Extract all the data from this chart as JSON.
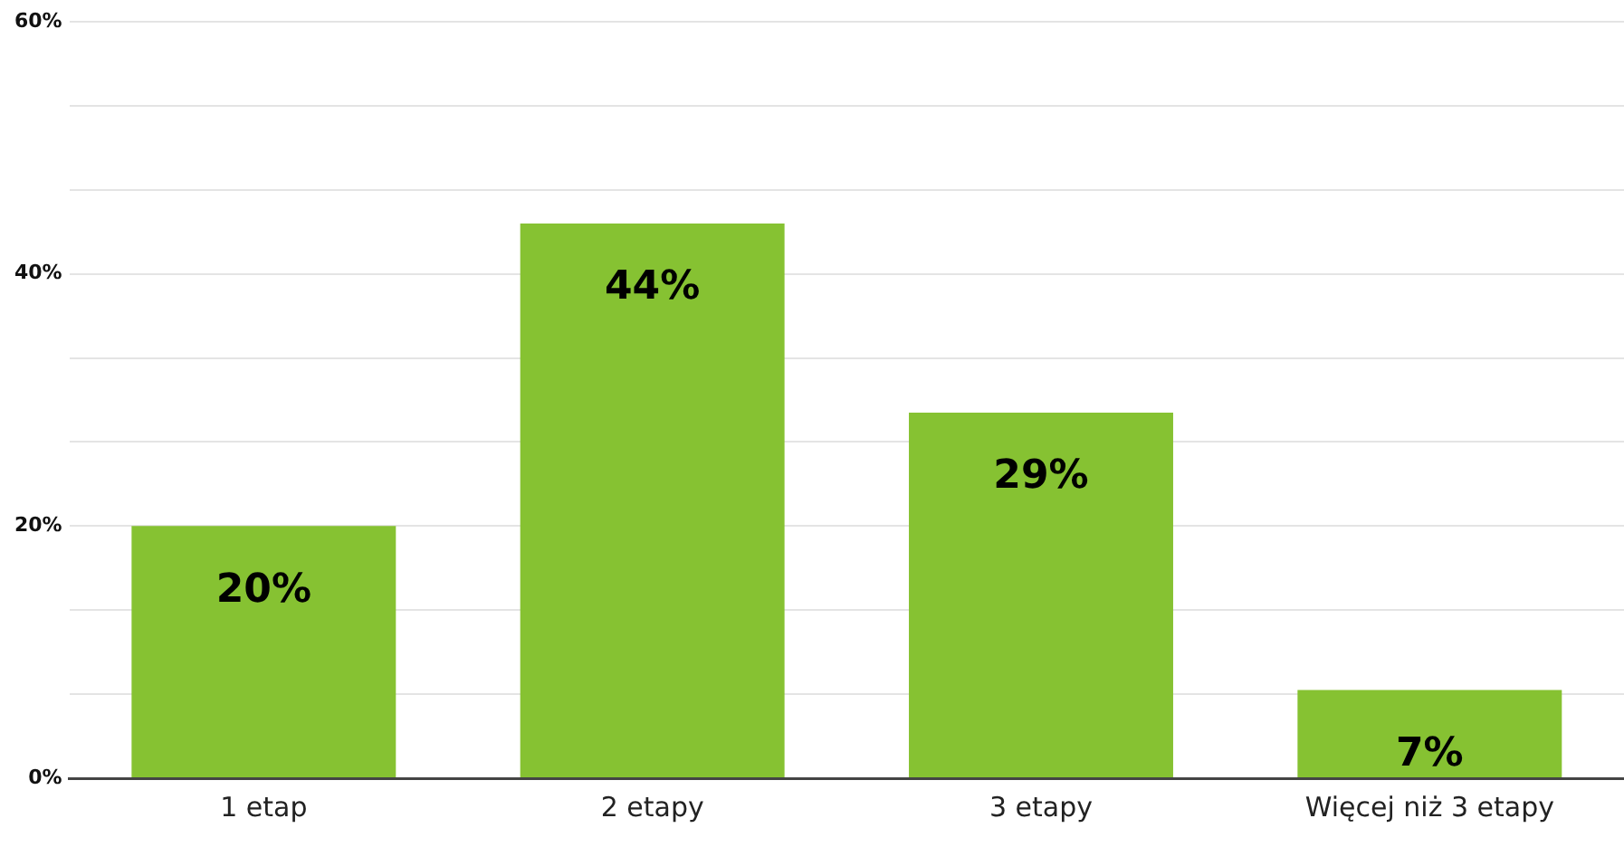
{
  "chart_data": {
    "type": "bar",
    "categories": [
      "1 etap",
      "2 etapy",
      "3 etapy",
      "Więcej niż 3 etapy"
    ],
    "values": [
      20,
      44,
      29,
      7
    ],
    "color": "#86c232",
    "ylim": [
      0,
      60
    ],
    "yticks": [
      {
        "value": 0,
        "label": "0%"
      },
      {
        "value": 6.67,
        "label": null
      },
      {
        "value": 13.33,
        "label": null
      },
      {
        "value": 20,
        "label": "20%"
      },
      {
        "value": 26.67,
        "label": null
      },
      {
        "value": 33.33,
        "label": null
      },
      {
        "value": 40,
        "label": "40%"
      },
      {
        "value": 46.67,
        "label": null
      },
      {
        "value": 53.33,
        "label": null
      },
      {
        "value": 60,
        "label": "60%"
      }
    ],
    "grid": "y",
    "data_labels": true,
    "value_labels": [
      "20%",
      "44%",
      "29%",
      "7%"
    ],
    "legend": false
  }
}
